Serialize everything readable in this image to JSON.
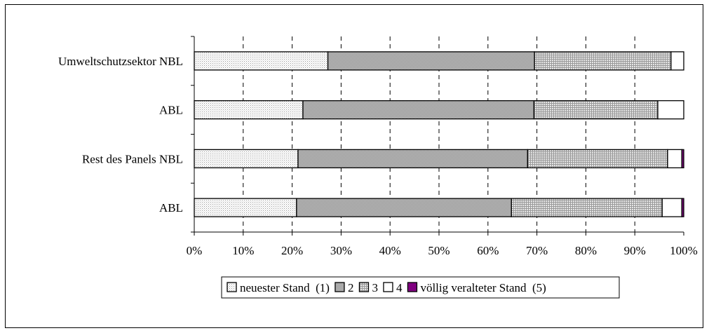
{
  "chart_data": {
    "type": "bar",
    "orientation": "horizontal",
    "stacked": "percent",
    "categories": [
      "Umweltschutzsektor NBL",
      "ABL",
      "Rest des Panels NBL",
      "ABL"
    ],
    "series": [
      {
        "name": "neuester Stand  (1)",
        "values": [
          27.3,
          22.2,
          21.2,
          20.9
        ],
        "color": "#f2f2f2",
        "pattern": "dots"
      },
      {
        "name": "2",
        "values": [
          42.2,
          47.2,
          46.9,
          43.9
        ],
        "color": "#a6a6a6",
        "pattern": "dense"
      },
      {
        "name": "3",
        "values": [
          27.9,
          25.3,
          28.6,
          30.8
        ],
        "color": "#d9d9d9",
        "pattern": "grid"
      },
      {
        "name": "4",
        "values": [
          2.6,
          5.3,
          2.9,
          4.0
        ],
        "color": "#ffffff",
        "pattern": "none"
      },
      {
        "name": "völlig veralteter Stand  (5)",
        "values": [
          0.0,
          0.0,
          0.4,
          0.4
        ],
        "color": "#800080",
        "pattern": "none"
      }
    ],
    "x_ticks": [
      "0%",
      "10%",
      "20%",
      "30%",
      "40%",
      "50%",
      "60%",
      "70%",
      "80%",
      "90%",
      "100%"
    ],
    "xlim": [
      0,
      100
    ],
    "grid": "vertical dashed",
    "legend_position": "bottom"
  }
}
